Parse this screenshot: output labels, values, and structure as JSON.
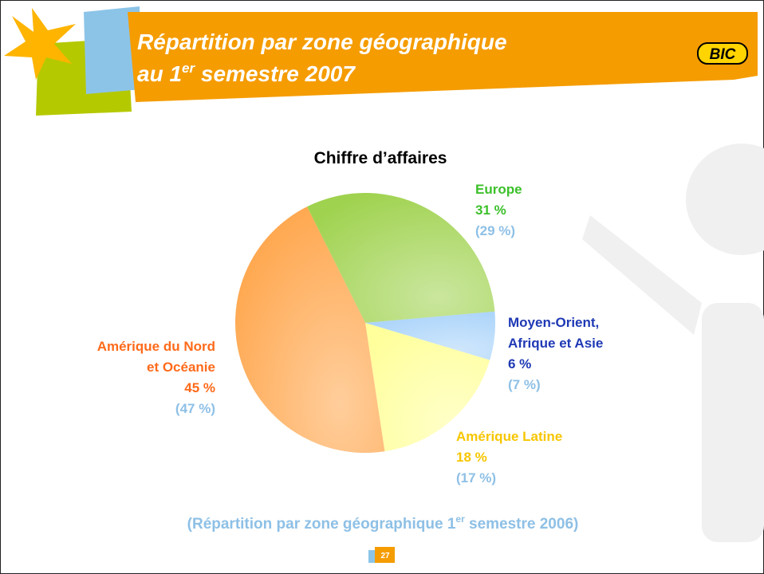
{
  "header": {
    "title_line1": "Répartition par zone géographique",
    "title_line2_pre": "au 1",
    "title_line2_sup": "er",
    "title_line2_post": " semestre 2007",
    "logo": "BIC"
  },
  "chart_data": {
    "type": "pie",
    "title": "Chiffre d’affaires",
    "categories": [
      [
        "Europe"
      ],
      [
        "Moyen-Orient,",
        " Afrique et Asie"
      ],
      [
        "Amérique Latine"
      ],
      [
        "Amérique du Nord",
        "et Océanie"
      ]
    ],
    "values": [
      31,
      6,
      18,
      45
    ],
    "value_labels": [
      "31 %",
      "6 %",
      "18 %",
      "45 %"
    ],
    "previous_values": [
      29,
      7,
      17,
      47
    ],
    "previous_value_labels": [
      "(29 %)",
      "(7 %)",
      "(17 %)",
      "(47 %)"
    ],
    "colors": [
      "#9fd24e",
      "#a9d3fa",
      "#ffff9c",
      "#ffa54a"
    ],
    "label_colors": [
      "#3cc02a",
      "#1f39b5",
      "#f7c600",
      "#ff6a1a"
    ],
    "previous_color": "#8ec0e6"
  },
  "footnote": {
    "pre": "(Répartition par zone géographique 1",
    "sup": "er",
    "post": " semestre 2006)"
  },
  "page_number": "27"
}
